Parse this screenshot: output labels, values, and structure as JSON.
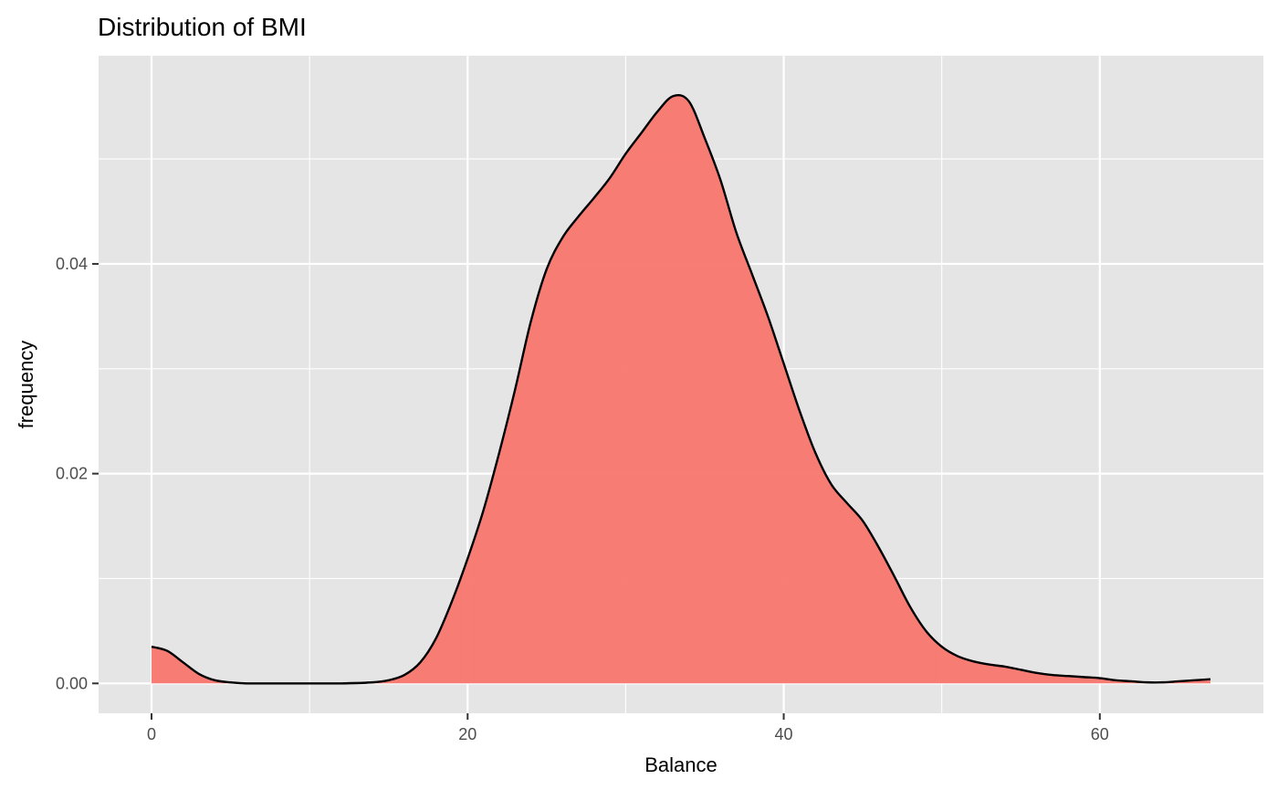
{
  "chart_data": {
    "type": "area",
    "title": "Distribution of BMI",
    "xlabel": "Balance",
    "ylabel": "frequency",
    "xlim": [
      -3.35,
      70.35
    ],
    "ylim": [
      -0.00285,
      0.05985
    ],
    "x_ticks": [
      0,
      20,
      40,
      60
    ],
    "x_tick_labels": [
      "0",
      "20",
      "40",
      "60"
    ],
    "x_minor": [
      10,
      30,
      50
    ],
    "y_ticks": [
      0.0,
      0.02,
      0.04
    ],
    "y_tick_labels": [
      "0.00",
      "0.02",
      "0.04"
    ],
    "y_minor": [
      0.01,
      0.03,
      0.05
    ],
    "grid": true,
    "colors": {
      "panel": "#e5e5e5",
      "grid": "#ffffff",
      "fill": "#f8766d",
      "fill_opacity": 0.95,
      "line": "#000000",
      "tick": "#333333"
    },
    "series": [
      {
        "x": [
          0,
          1,
          2,
          3,
          4,
          5,
          6,
          8,
          10,
          12,
          14,
          15,
          16,
          17,
          18,
          19,
          20,
          21,
          22,
          23,
          24,
          25,
          26,
          27,
          28,
          29,
          30,
          31,
          32,
          33,
          34,
          35,
          36,
          37,
          38,
          39,
          40,
          41,
          42,
          43,
          44,
          45,
          46,
          47,
          48,
          49,
          50,
          51,
          52,
          53,
          54,
          55,
          56,
          57,
          58,
          59,
          60,
          61,
          62,
          63,
          64,
          65,
          66,
          67
        ],
        "y": [
          0.0035,
          0.0031,
          0.002,
          0.0009,
          0.0003,
          0.0001,
          0.0,
          0.0,
          0.0,
          0.0,
          0.0001,
          0.0003,
          0.0008,
          0.002,
          0.0043,
          0.0078,
          0.0119,
          0.0165,
          0.022,
          0.028,
          0.0345,
          0.0395,
          0.0425,
          0.0445,
          0.0463,
          0.0482,
          0.0505,
          0.0525,
          0.0545,
          0.056,
          0.0555,
          0.052,
          0.048,
          0.043,
          0.039,
          0.035,
          0.0305,
          0.026,
          0.022,
          0.019,
          0.0172,
          0.0155,
          0.013,
          0.0102,
          0.0073,
          0.005,
          0.0035,
          0.0026,
          0.0021,
          0.0018,
          0.0016,
          0.0013,
          0.001,
          0.0008,
          0.0007,
          0.0006,
          0.0005,
          0.0003,
          0.0002,
          0.0001,
          0.0001,
          0.0002,
          0.0003,
          0.0004
        ]
      }
    ]
  }
}
